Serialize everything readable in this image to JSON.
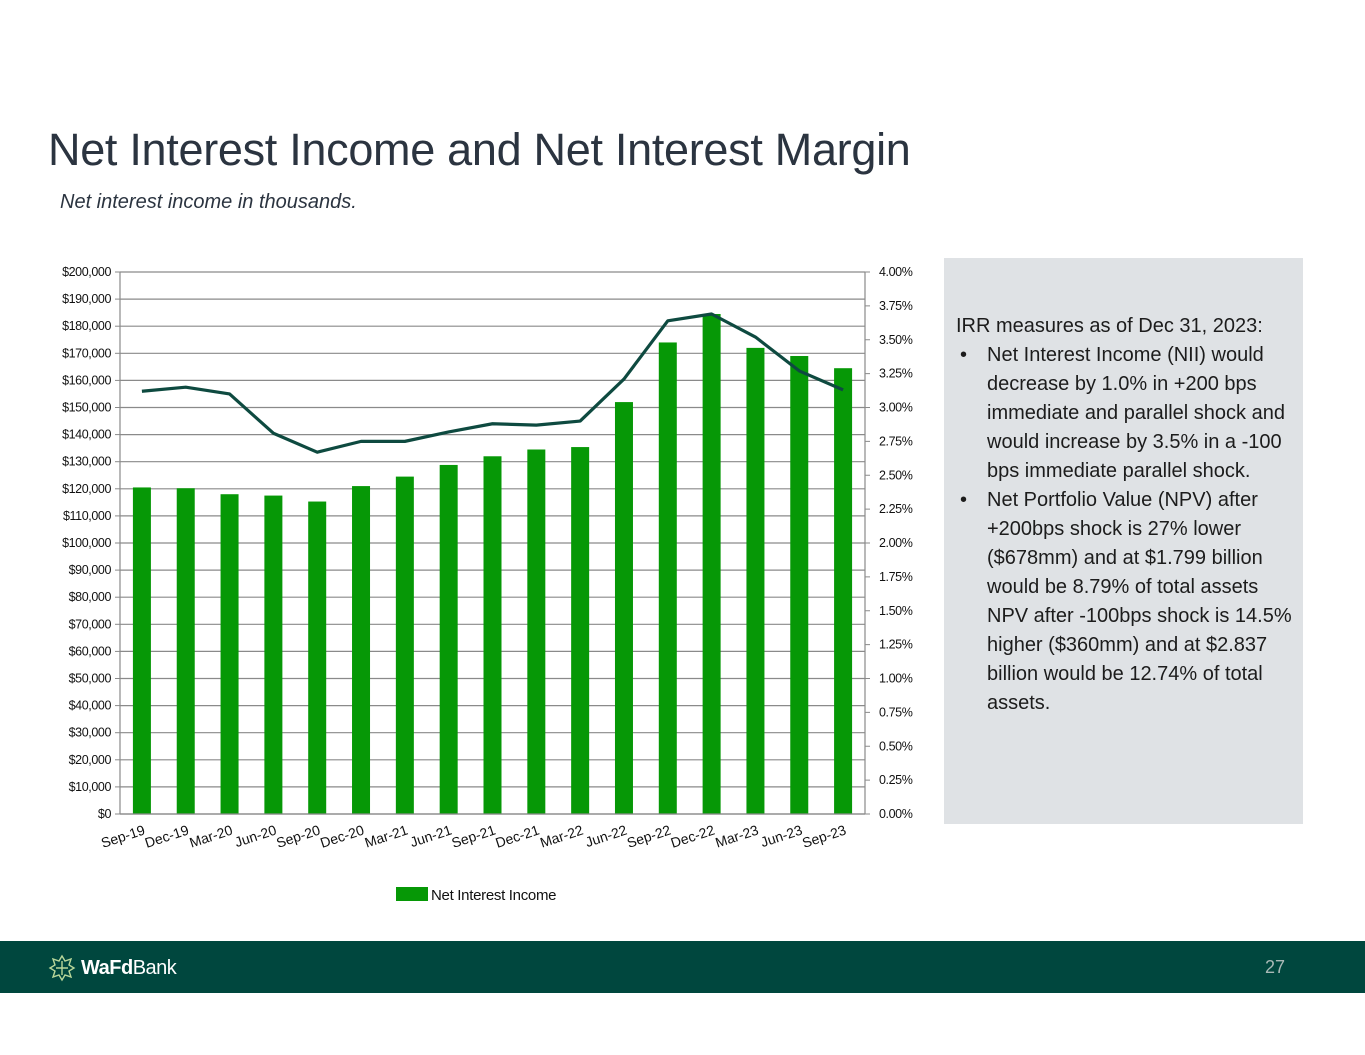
{
  "page": {
    "title": "Net Interest Income and Net Interest Margin",
    "subtitle": "Net interest income in thousands.",
    "page_number": "27"
  },
  "brand": {
    "logo_bold": "WaFd",
    "logo_light": "Bank",
    "footer_color": "#00473e"
  },
  "info_box": {
    "heading": "IRR measures as of Dec 31, 2023:",
    "bullets": [
      "Net Interest Income (NII) would decrease by 1.0% in +200 bps immediate and parallel shock and would increase by 3.5% in a -100 bps immediate parallel shock.",
      "Net Portfolio Value (NPV) after +200bps shock is 27% lower ($678mm) and at $1.799 billion would be 8.79% of total assets   NPV after -100bps shock is 14.5% higher ($360mm) and at $2.837 billion would be 12.74% of total assets."
    ],
    "bullet_glyph": "•"
  },
  "chart_data": {
    "type": "bar",
    "title": "",
    "categories": [
      "Sep-19",
      "Dec-19",
      "Mar-20",
      "Jun-20",
      "Sep-20",
      "Dec-20",
      "Mar-21",
      "Jun-21",
      "Sep-21",
      "Dec-21",
      "Mar-22",
      "Jun-22",
      "Sep-22",
      "Dec-22",
      "Mar-23",
      "Jun-23",
      "Sep-23"
    ],
    "series": [
      {
        "name": "Net Interest Income",
        "type": "bar",
        "axis": "left",
        "color": "#069806",
        "values": [
          120500,
          120200,
          118000,
          117500,
          115300,
          121000,
          124500,
          128800,
          132000,
          134500,
          135400,
          152000,
          174000,
          184500,
          172000,
          169000,
          164500
        ]
      },
      {
        "name": "Net Interest Margin",
        "type": "line",
        "axis": "right",
        "color": "#0e4a40",
        "values": [
          3.12,
          3.15,
          3.1,
          2.81,
          2.67,
          2.75,
          2.75,
          2.82,
          2.88,
          2.87,
          2.9,
          3.21,
          3.64,
          3.69,
          3.52,
          3.27,
          3.13
        ]
      }
    ],
    "y_left": {
      "min": 0,
      "max": 200000,
      "step": 10000,
      "tick_labels": [
        "$0",
        "$10,000",
        "$20,000",
        "$30,000",
        "$40,000",
        "$50,000",
        "$60,000",
        "$70,000",
        "$80,000",
        "$90,000",
        "$100,000",
        "$110,000",
        "$120,000",
        "$130,000",
        "$140,000",
        "$150,000",
        "$160,000",
        "$170,000",
        "$180,000",
        "$190,000",
        "$200,000"
      ]
    },
    "y_right": {
      "min": 0,
      "max": 4.0,
      "step": 0.25,
      "tick_labels": [
        "0.00%",
        "0.25%",
        "0.50%",
        "0.75%",
        "1.00%",
        "1.25%",
        "1.50%",
        "1.75%",
        "2.00%",
        "2.25%",
        "2.50%",
        "2.75%",
        "3.00%",
        "3.25%",
        "3.50%",
        "3.75%",
        "4.00%"
      ]
    },
    "grid": true,
    "legend": {
      "position": "bottom",
      "entries": [
        "Net Interest Income"
      ]
    }
  }
}
